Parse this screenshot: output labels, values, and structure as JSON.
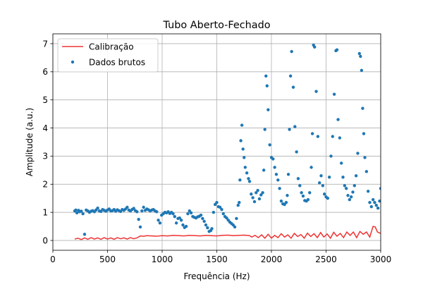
{
  "chart_data": {
    "type": "line+scatter",
    "title": "Tubo Aberto-Fechado",
    "xlabel": "Frequência (Hz)",
    "ylabel": "Amplitude (a.u.)",
    "xlim": [
      0,
      3000
    ],
    "ylim": [
      -0.35,
      7.35
    ],
    "xticks": [
      0,
      500,
      1000,
      1500,
      2000,
      2500,
      3000
    ],
    "yticks": [
      0,
      1,
      2,
      3,
      4,
      5,
      6,
      7
    ],
    "grid": true,
    "legend_position": "upper left",
    "series": [
      {
        "name": "Calibração",
        "type": "line",
        "color": "#ee3333",
        "x": [
          200,
          230,
          260,
          290,
          320,
          350,
          380,
          410,
          440,
          470,
          500,
          530,
          560,
          590,
          620,
          650,
          680,
          710,
          740,
          770,
          800,
          830,
          860,
          900,
          950,
          1000,
          1050,
          1100,
          1150,
          1200,
          1250,
          1300,
          1350,
          1400,
          1450,
          1500,
          1550,
          1600,
          1650,
          1700,
          1750,
          1800,
          1820,
          1850,
          1880,
          1910,
          1940,
          1970,
          2000,
          2030,
          2060,
          2090,
          2120,
          2150,
          2180,
          2210,
          2240,
          2270,
          2300,
          2330,
          2360,
          2390,
          2420,
          2450,
          2480,
          2510,
          2540,
          2570,
          2600,
          2630,
          2660,
          2690,
          2720,
          2750,
          2780,
          2810,
          2840,
          2870,
          2900,
          2930,
          2950,
          2970,
          3000
        ],
        "y": [
          0.05,
          0.08,
          0.03,
          0.09,
          0.04,
          0.1,
          0.05,
          0.09,
          0.04,
          0.1,
          0.05,
          0.09,
          0.04,
          0.1,
          0.06,
          0.09,
          0.05,
          0.1,
          0.06,
          0.09,
          0.16,
          0.15,
          0.17,
          0.16,
          0.15,
          0.17,
          0.16,
          0.18,
          0.17,
          0.16,
          0.18,
          0.17,
          0.16,
          0.18,
          0.17,
          0.16,
          0.18,
          0.19,
          0.17,
          0.18,
          0.19,
          0.17,
          0.12,
          0.18,
          0.1,
          0.2,
          0.08,
          0.22,
          0.08,
          0.18,
          0.1,
          0.24,
          0.12,
          0.2,
          0.08,
          0.25,
          0.14,
          0.21,
          0.08,
          0.26,
          0.14,
          0.24,
          0.1,
          0.28,
          0.12,
          0.23,
          0.08,
          0.29,
          0.15,
          0.25,
          0.1,
          0.3,
          0.18,
          0.3,
          0.1,
          0.32,
          0.22,
          0.3,
          0.12,
          0.5,
          0.48,
          0.3,
          0.25
        ]
      },
      {
        "name": "Dados brutos",
        "type": "scatter",
        "color": "#1f77b4",
        "x": [
          200,
          210,
          220,
          235,
          245,
          260,
          275,
          290,
          305,
          320,
          335,
          350,
          365,
          380,
          395,
          410,
          425,
          440,
          455,
          470,
          485,
          500,
          515,
          530,
          545,
          560,
          575,
          590,
          605,
          620,
          635,
          650,
          665,
          680,
          695,
          710,
          725,
          740,
          755,
          770,
          785,
          800,
          815,
          830,
          845,
          860,
          875,
          890,
          905,
          920,
          935,
          950,
          965,
          980,
          995,
          1010,
          1025,
          1040,
          1055,
          1070,
          1085,
          1100,
          1115,
          1130,
          1145,
          1160,
          1175,
          1190,
          1205,
          1220,
          1235,
          1250,
          1265,
          1280,
          1295,
          1310,
          1325,
          1340,
          1355,
          1370,
          1385,
          1400,
          1415,
          1430,
          1445,
          1455,
          1470,
          1485,
          1500,
          1515,
          1530,
          1545,
          1560,
          1575,
          1590,
          1605,
          1620,
          1635,
          1650,
          1665,
          1680,
          1695,
          1705,
          1712,
          1720,
          1730,
          1740,
          1750,
          1760,
          1775,
          1790,
          1800,
          1815,
          1830,
          1845,
          1860,
          1875,
          1890,
          1905,
          1920,
          1930,
          1940,
          1950,
          1960,
          1970,
          1985,
          2000,
          2015,
          2030,
          2045,
          2060,
          2075,
          2090,
          2105,
          2120,
          2135,
          2145,
          2155,
          2165,
          2175,
          2185,
          2200,
          2215,
          2230,
          2245,
          2260,
          2275,
          2290,
          2305,
          2320,
          2335,
          2350,
          2365,
          2375,
          2385,
          2395,
          2410,
          2425,
          2440,
          2455,
          2470,
          2485,
          2500,
          2515,
          2530,
          2545,
          2560,
          2575,
          2590,
          2600,
          2610,
          2625,
          2640,
          2655,
          2670,
          2685,
          2700,
          2715,
          2730,
          2745,
          2760,
          2775,
          2790,
          2805,
          2815,
          2825,
          2835,
          2845,
          2855,
          2870,
          2885,
          2900,
          2915,
          2930,
          2945,
          2960,
          2975,
          2990,
          3000
        ],
        "y": [
          1.05,
          1.08,
          0.98,
          1.07,
          1.02,
          1.04,
          0.95,
          0.22,
          1.08,
          1.05,
          1.0,
          1.04,
          1.06,
          1.02,
          1.08,
          1.15,
          1.05,
          1.03,
          1.1,
          1.07,
          1.04,
          1.08,
          1.12,
          1.05,
          1.06,
          1.1,
          1.04,
          1.09,
          1.06,
          1.03,
          1.1,
          1.07,
          1.12,
          1.18,
          1.08,
          1.05,
          1.1,
          1.14,
          1.06,
          1.02,
          0.75,
          0.48,
          1.05,
          1.18,
          1.07,
          1.12,
          1.09,
          1.05,
          1.08,
          1.1,
          1.05,
          1.02,
          0.72,
          0.62,
          0.9,
          0.95,
          1.0,
          0.98,
          1.02,
          0.96,
          1.0,
          0.95,
          0.85,
          0.62,
          0.78,
          0.8,
          0.72,
          0.55,
          0.46,
          0.5,
          0.95,
          1.05,
          0.98,
          0.85,
          0.82,
          0.8,
          0.84,
          0.86,
          0.9,
          0.78,
          0.68,
          0.55,
          0.45,
          0.32,
          0.35,
          0.42,
          1.0,
          1.28,
          1.35,
          1.2,
          1.18,
          1.1,
          0.95,
          0.85,
          0.8,
          0.72,
          0.65,
          0.6,
          0.55,
          0.48,
          0.78,
          1.25,
          1.35,
          2.15,
          3.55,
          4.1,
          3.25,
          2.95,
          2.6,
          2.4,
          2.2,
          2.1,
          1.65,
          1.52,
          1.38,
          1.7,
          1.78,
          1.48,
          1.62,
          1.7,
          2.5,
          3.95,
          5.85,
          5.5,
          4.65,
          3.4,
          2.95,
          2.9,
          2.6,
          2.35,
          2.15,
          1.85,
          1.4,
          1.3,
          1.28,
          1.35,
          1.6,
          2.35,
          3.95,
          5.85,
          6.72,
          5.45,
          4.05,
          3.15,
          2.2,
          1.95,
          1.7,
          1.58,
          1.42,
          1.4,
          1.45,
          1.7,
          2.6,
          3.8,
          6.95,
          6.88,
          5.3,
          3.7,
          2.05,
          2.3,
          1.95,
          1.65,
          1.55,
          1.5,
          2.25,
          3.0,
          3.7,
          5.2,
          6.75,
          6.78,
          4.3,
          3.65,
          2.75,
          2.25,
          1.95,
          1.85,
          1.6,
          1.45,
          1.55,
          1.72,
          1.95,
          2.3,
          3.1,
          6.65,
          6.55,
          6.05,
          4.7,
          3.8,
          2.95,
          2.45,
          1.75,
          1.35,
          1.2,
          1.45,
          1.35,
          1.25,
          1.15,
          1.4,
          1.85
        ]
      }
    ]
  }
}
